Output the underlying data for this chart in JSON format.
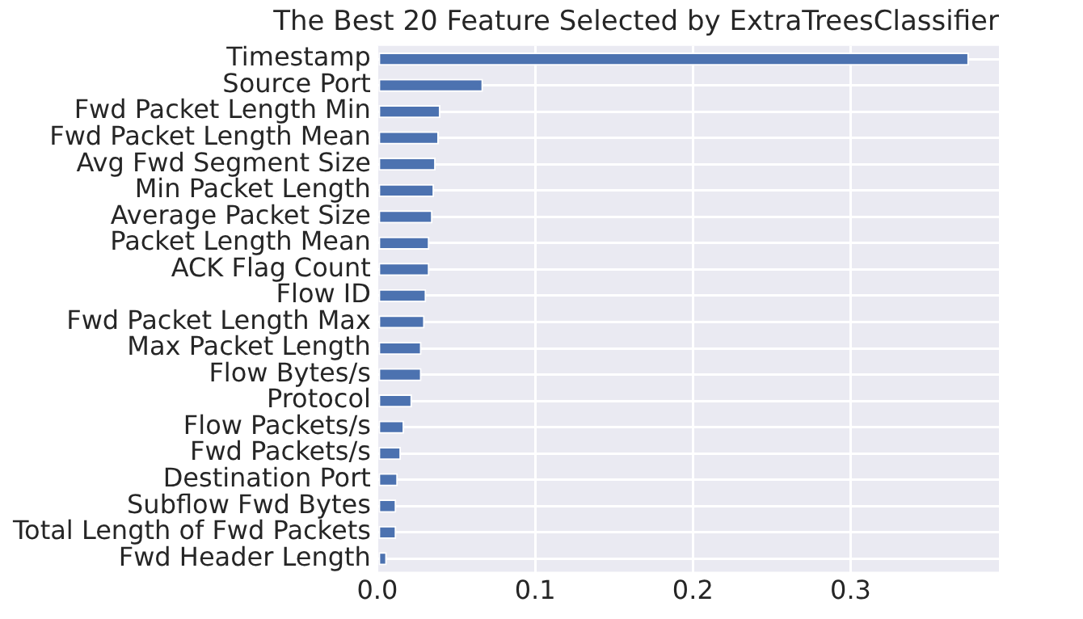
{
  "chart_data": {
    "type": "bar",
    "orientation": "horizontal",
    "title": "The Best 20 Feature Selected by ExtraTreesClassifier",
    "categories": [
      "Timestamp",
      "Source Port",
      "Fwd Packet Length Min",
      "Fwd Packet Length Mean",
      "Avg Fwd Segment Size",
      "Min Packet Length",
      "Average Packet Size",
      "Packet Length Mean",
      "ACK Flag Count",
      "Flow ID",
      "Fwd Packet Length Max",
      "Max Packet Length",
      "Flow Bytes/s",
      "Protocol",
      "Flow Packets/s",
      "Fwd Packets/s",
      "Destination Port",
      "Subflow Fwd Bytes",
      "Total Length of Fwd Packets",
      "Fwd Header Length"
    ],
    "values": [
      0.375,
      0.067,
      0.04,
      0.039,
      0.037,
      0.036,
      0.035,
      0.033,
      0.033,
      0.031,
      0.03,
      0.028,
      0.028,
      0.022,
      0.017,
      0.015,
      0.013,
      0.012,
      0.012,
      0.006
    ],
    "color": "#4c72b0",
    "xlim": [
      0,
      0.394
    ],
    "xticks": [
      {
        "value": 0,
        "label": "0.0"
      },
      0.1,
      0.2,
      0.3
    ],
    "grid": true,
    "legend": false
  }
}
